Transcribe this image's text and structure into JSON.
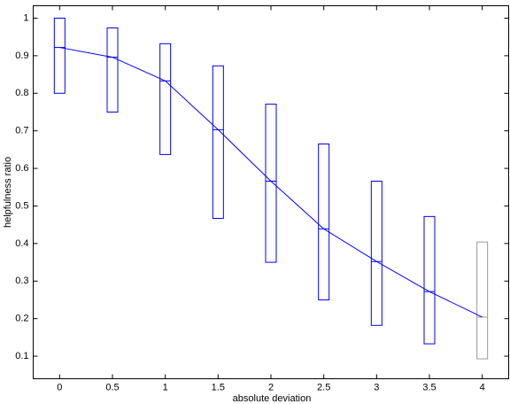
{
  "chart_data": {
    "type": "box",
    "xlabel": "absolute deviation",
    "ylabel": "helpfulness ratio",
    "x": [
      0,
      0.5,
      1,
      1.5,
      2,
      2.5,
      3,
      3.5,
      4
    ],
    "lows": [
      0.8,
      0.75,
      0.637,
      0.467,
      0.35,
      0.25,
      0.182,
      0.133,
      0.093
    ],
    "highs": [
      1.0,
      0.974,
      0.932,
      0.873,
      0.771,
      0.665,
      0.566,
      0.472,
      0.404
    ],
    "medians": [
      0.922,
      0.896,
      0.833,
      0.703,
      0.566,
      0.439,
      0.352,
      0.272,
      0.204
    ],
    "box_colors": [
      "#0000ff",
      "#0000ff",
      "#0000ff",
      "#0000ff",
      "#0000ff",
      "#0000ff",
      "#0000ff",
      "#0000ff",
      "#999999"
    ],
    "line_color": "#0000ff",
    "xlim": [
      -0.25,
      4.25
    ],
    "ylim": [
      0.04,
      1.033
    ],
    "xticks": [
      0,
      0.5,
      1,
      1.5,
      2,
      2.5,
      3,
      3.5,
      4
    ],
    "yticks": [
      0.1,
      0.2,
      0.3,
      0.4,
      0.5,
      0.6,
      0.7,
      0.8,
      0.9,
      1
    ]
  }
}
